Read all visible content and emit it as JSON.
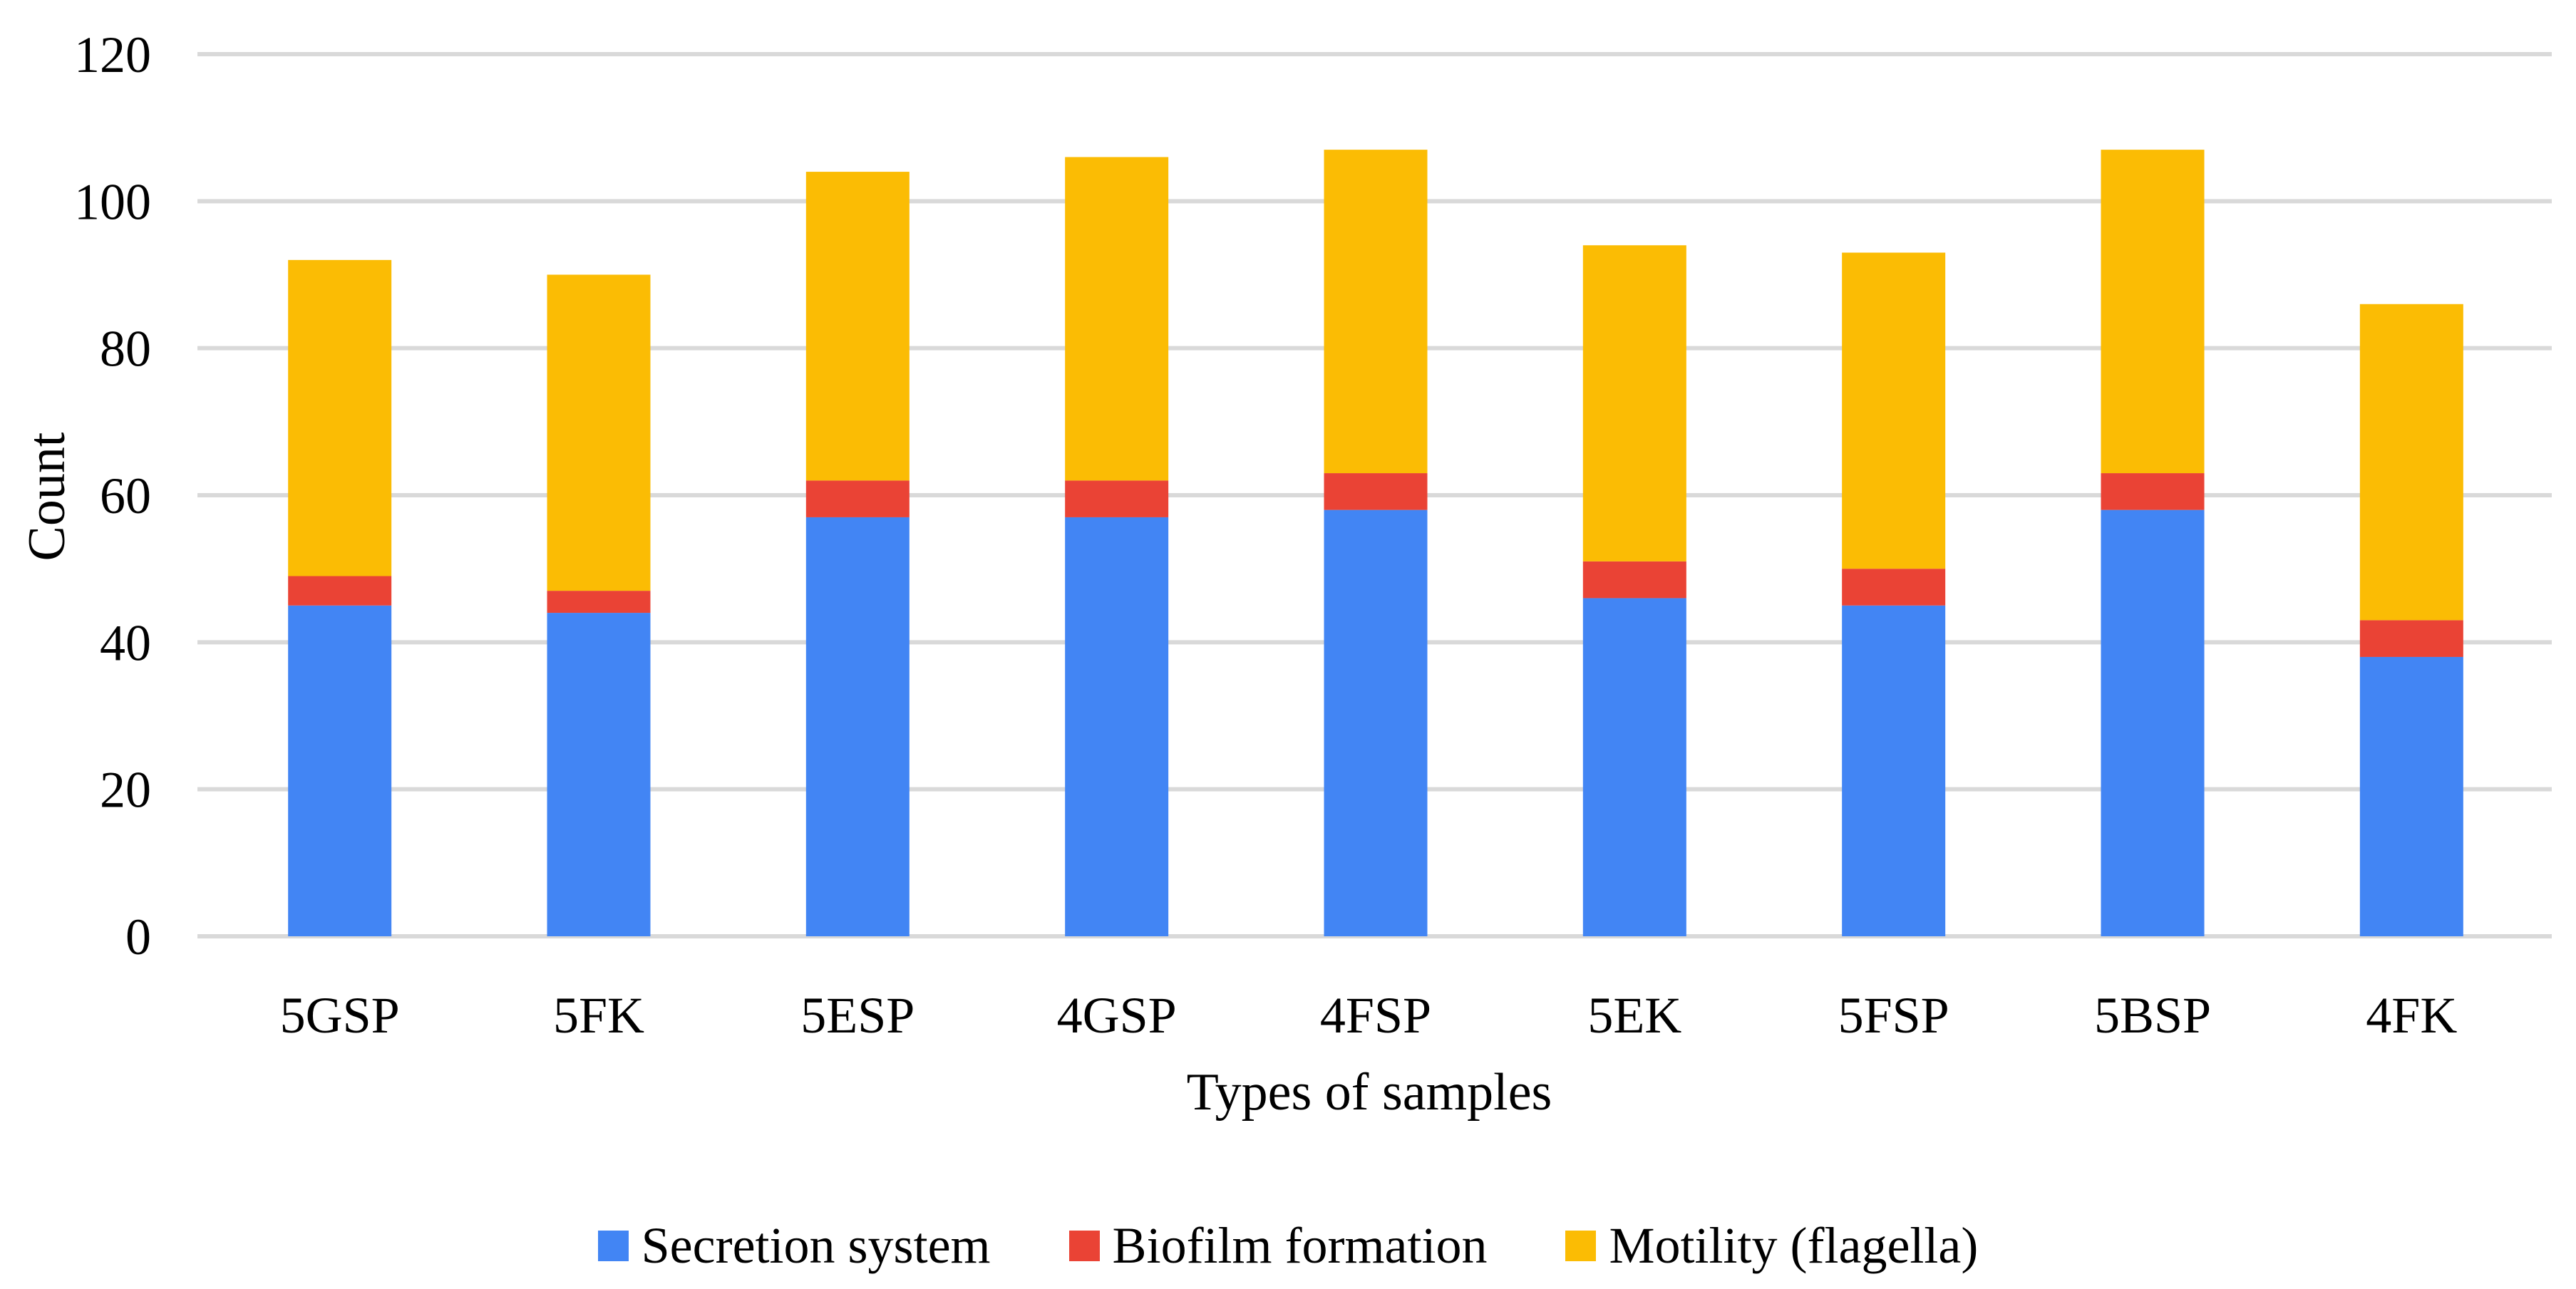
{
  "chart_data": {
    "type": "bar",
    "stacked": true,
    "xlabel": "Types of samples",
    "ylabel": "Count",
    "categories": [
      "5GSP",
      "5FK",
      "5ESP",
      "4GSP",
      "4FSP",
      "5EK",
      "5FSP",
      "5BSP",
      "4FK"
    ],
    "series": [
      {
        "name": "Secretion system",
        "color": "#4285F4",
        "values": [
          45,
          44,
          57,
          57,
          58,
          46,
          45,
          58,
          38
        ]
      },
      {
        "name": "Biofilm formation",
        "color": "#EA4335",
        "values": [
          4,
          3,
          5,
          5,
          5,
          5,
          5,
          5,
          5
        ]
      },
      {
        "name": "Motility (flagella)",
        "color": "#FBBC04",
        "values": [
          43,
          43,
          42,
          44,
          44,
          43,
          43,
          44,
          43
        ]
      }
    ],
    "totals": [
      92,
      90,
      104,
      106,
      107,
      94,
      93,
      107,
      86
    ],
    "ylim": [
      0,
      120
    ],
    "yticks": [
      0,
      20,
      40,
      60,
      80,
      100,
      120
    ],
    "grid": "horizontal",
    "grid_color": "#D9D9D9",
    "text_color": "#000000",
    "legend_position": "bottom"
  }
}
